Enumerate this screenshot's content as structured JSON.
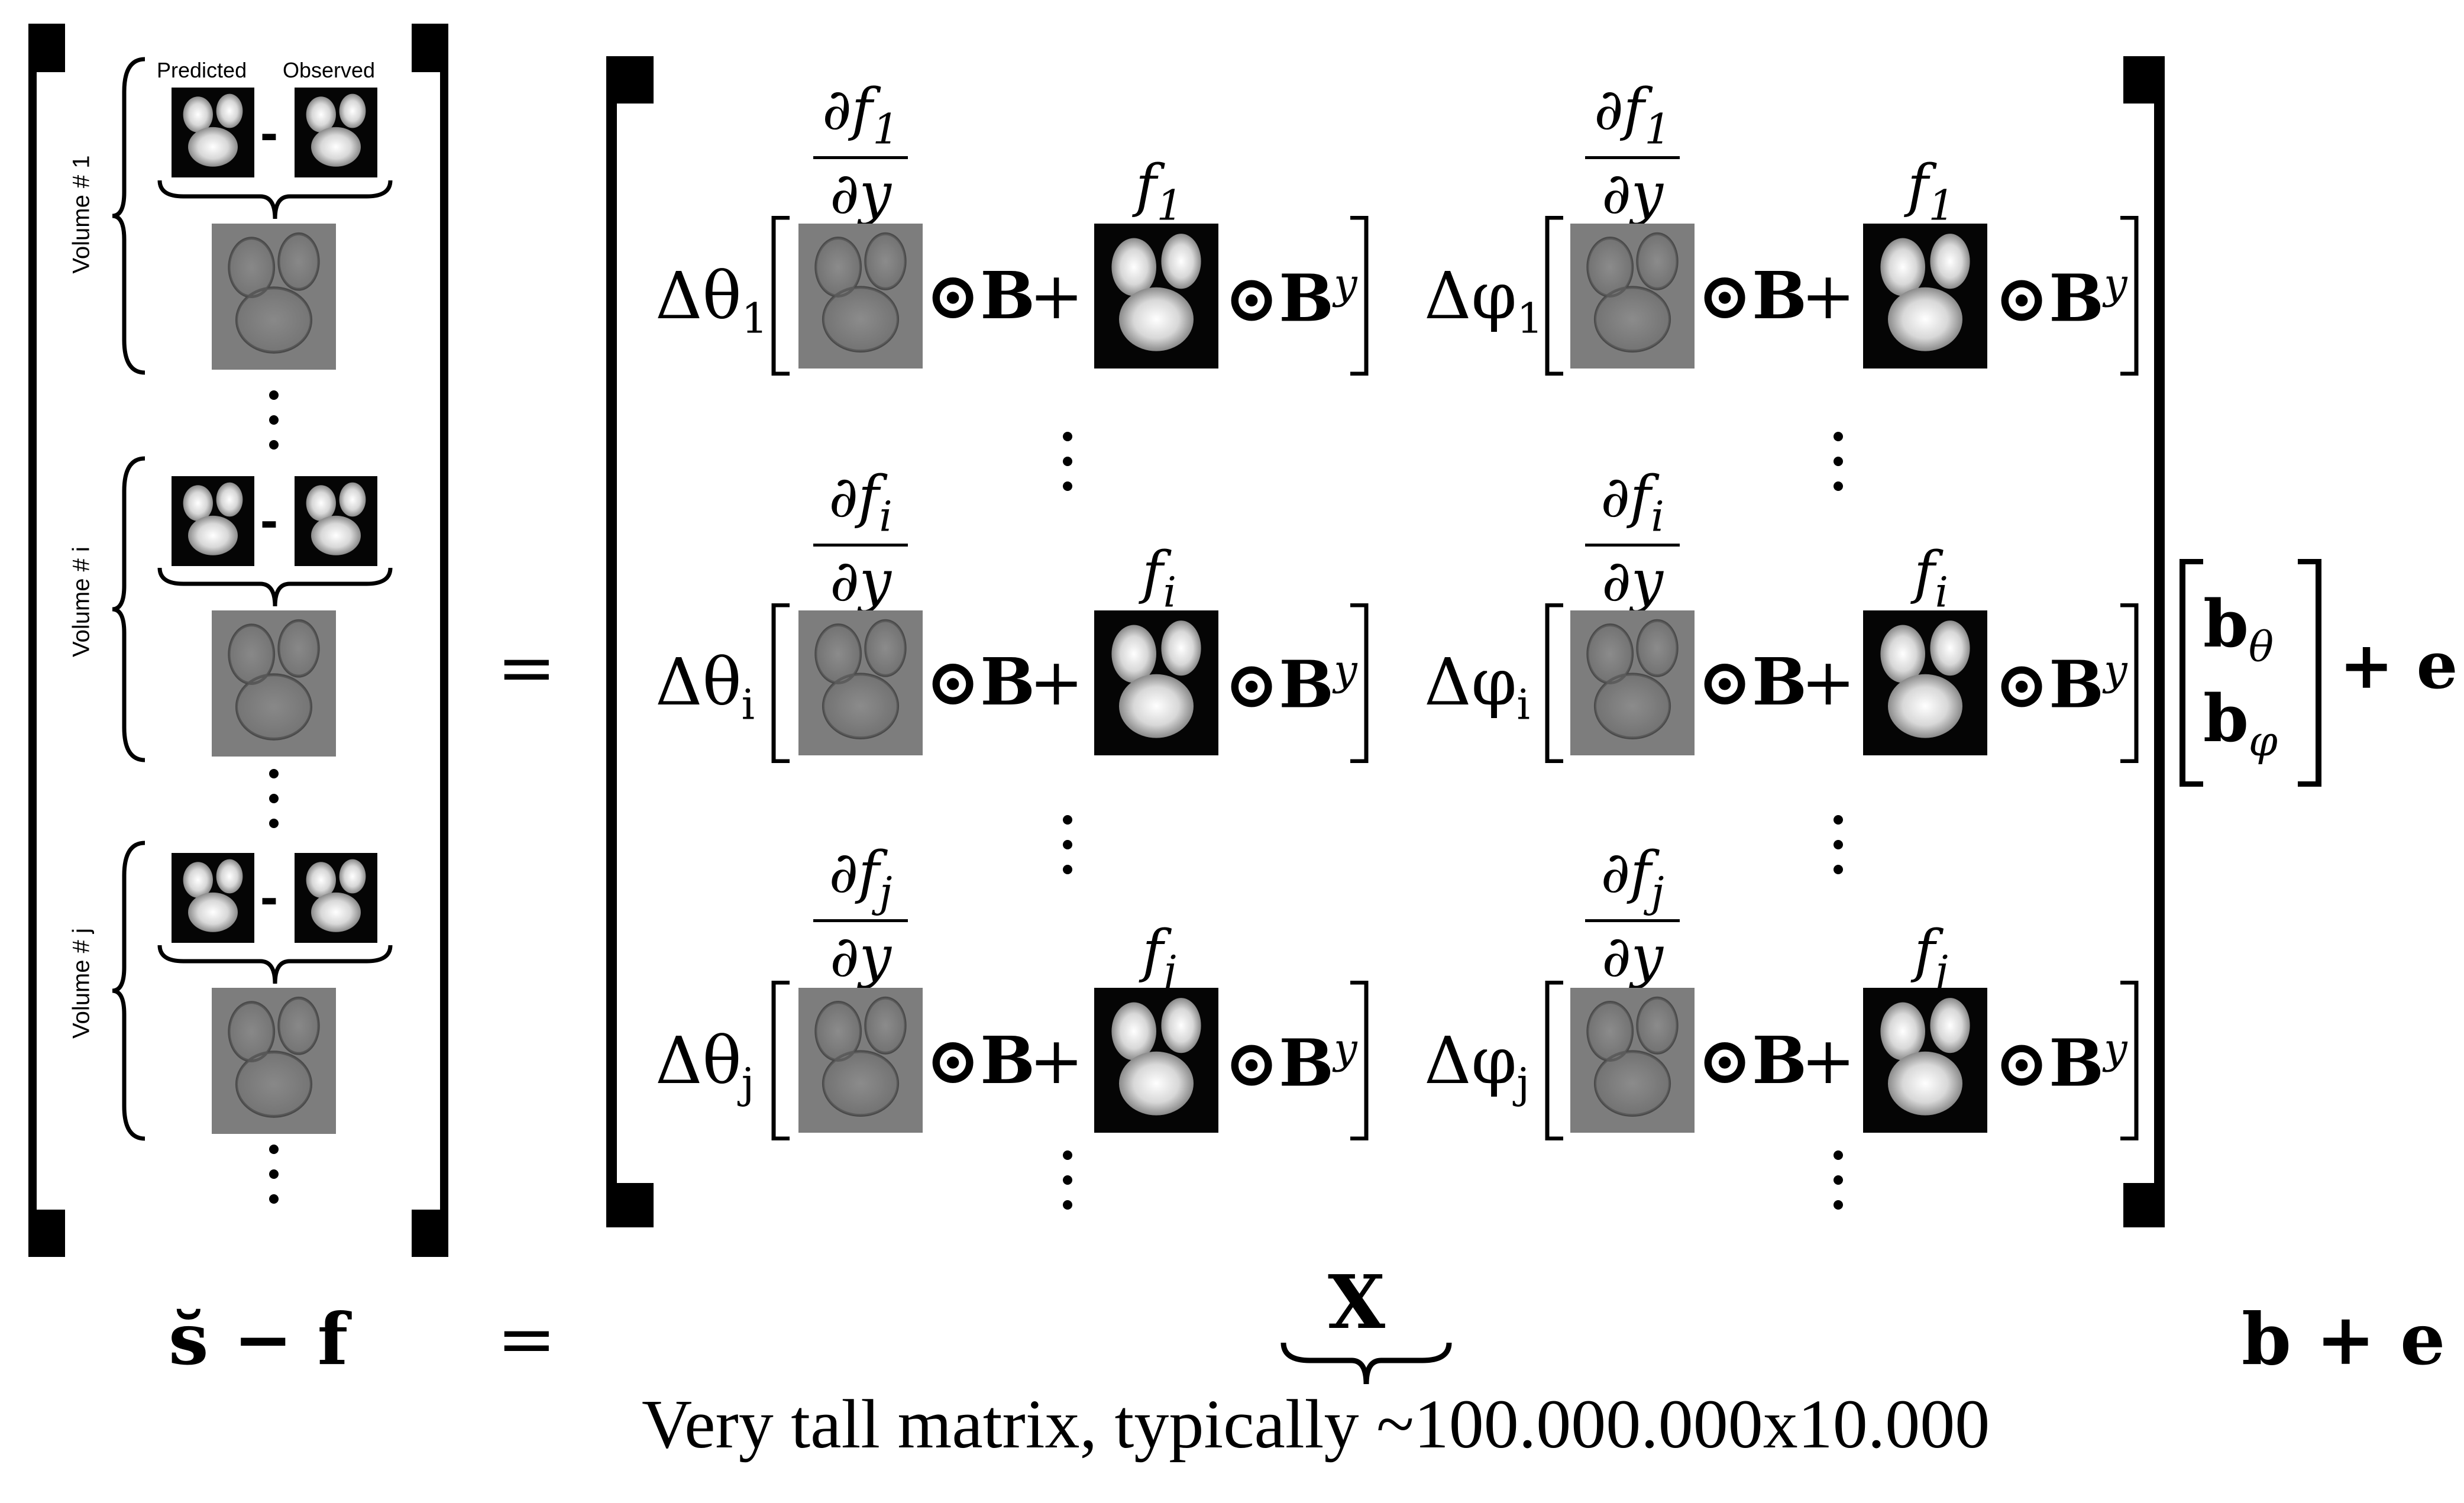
{
  "volumes": {
    "predicted_label": "Predicted",
    "observed_label": "Observed",
    "minus": "-",
    "vol1": "Volume # 1",
    "voli": "Volume # i",
    "volj": "Volume # j"
  },
  "equals": "=",
  "rows": [
    {
      "delta_theta": "Δθ",
      "delta_phi": "Δφ",
      "index": "1",
      "deriv_num": "∂f",
      "deriv_den": "∂y",
      "f": "f"
    },
    {
      "delta_theta": "Δθ",
      "delta_phi": "Δφ",
      "index": "i",
      "deriv_num": "∂f",
      "deriv_den": "∂y",
      "f": "f"
    },
    {
      "delta_theta": "Δθ",
      "delta_phi": "Δφ",
      "index": "j",
      "deriv_num": "∂f",
      "deriv_den": "∂y",
      "f": "f"
    }
  ],
  "operators": {
    "odot_B": "⊙B",
    "plus": "+",
    "odot_By": "⊙B",
    "y_sup": "y"
  },
  "beta_vector": {
    "b_theta": "b",
    "theta": "θ",
    "b_phi": "b",
    "phi": "φ",
    "plus_e": "+ e"
  },
  "bottom": {
    "lhs": "s̆ − f",
    "equals": "=",
    "X": "X",
    "rhs": "b + e",
    "caption": "Very tall matrix, typically ~100.000.000x10.000"
  }
}
